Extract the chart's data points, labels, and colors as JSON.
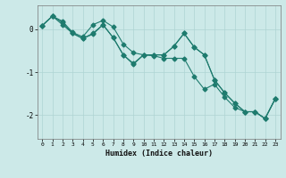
{
  "xlabel": "Humidex (Indice chaleur)",
  "x": [
    0,
    1,
    2,
    3,
    4,
    5,
    6,
    7,
    8,
    9,
    10,
    11,
    12,
    13,
    14,
    15,
    16,
    17,
    18,
    19,
    20,
    21,
    22,
    23
  ],
  "line1": [
    0.08,
    0.3,
    0.18,
    -0.08,
    -0.18,
    0.1,
    0.2,
    0.05,
    -0.35,
    -0.55,
    -0.6,
    -0.62,
    -0.68,
    -0.68,
    -0.68,
    -1.1,
    -1.4,
    -1.28,
    -1.58,
    -1.82,
    -1.92,
    -1.92,
    -2.08,
    -1.62
  ],
  "line2": [
    0.08,
    0.3,
    0.15,
    -0.1,
    -0.22,
    -0.12,
    0.1,
    -0.2,
    -0.6,
    -0.82,
    -0.6,
    -0.6,
    -0.6,
    -0.4,
    -0.1,
    -0.42,
    -0.6,
    -1.18,
    -1.48,
    -1.72,
    -1.92,
    -1.92,
    -2.08,
    -1.62
  ],
  "line3": [
    0.08,
    0.3,
    0.1,
    -0.1,
    -0.22,
    -0.1,
    0.1,
    -0.2,
    -0.6,
    -0.8,
    -0.6,
    -0.6,
    -0.6,
    -0.4,
    -0.1,
    -0.42,
    -0.6,
    -1.18,
    -1.48,
    -1.72,
    -1.92,
    -1.92,
    -2.08,
    -1.62
  ],
  "background_color": "#cce9e8",
  "grid_color": "#aed4d3",
  "line_color": "#1e7b6e",
  "xlim": [
    -0.5,
    23.5
  ],
  "ylim": [
    -2.55,
    0.55
  ],
  "yticks": [
    0,
    -1,
    -2
  ],
  "xticks": [
    0,
    1,
    2,
    3,
    4,
    5,
    6,
    7,
    8,
    9,
    10,
    11,
    12,
    13,
    14,
    15,
    16,
    17,
    18,
    19,
    20,
    21,
    22,
    23
  ]
}
